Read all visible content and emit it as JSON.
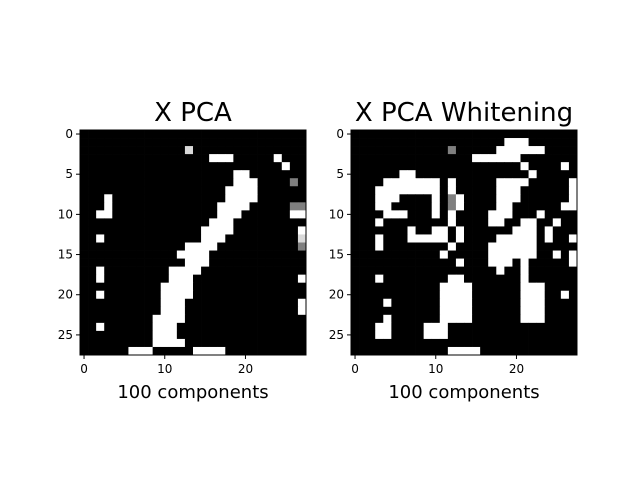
{
  "chart_data": [
    {
      "type": "heatmap",
      "title": "X PCA",
      "xlabel": "100 components",
      "ylabel": "",
      "xlim": [
        -0.5,
        27.5
      ],
      "ylim": [
        27.5,
        -0.5
      ],
      "xticks": [
        "0",
        "10",
        "20"
      ],
      "yticks": [
        "0",
        "5",
        "10",
        "15",
        "20",
        "25"
      ],
      "colormap": "gray",
      "rows": [
        "0000000000000000000000000000",
        "0000000000000000000000000000",
        "0000000000000300000000000000",
        "0000000000000000111000001000",
        "0000000000000000000000000100",
        "0000000000000000000110000000",
        "0000000000000000000111000020",
        "0000000000000000001111000000",
        "0001000000000000001111000000",
        "0001000000000000011110000022",
        "0011000000000000011100000011",
        "0000000000000000111000000000",
        "0000000000000001111000000001",
        "0010000000000001110000000003",
        "0000000000000111100000000002",
        "0000000000001111000000000000",
        "0000000000000111000000000000",
        "0010000000011110000000000000",
        "0010000000011100000000000001",
        "0000000000111100000000000000",
        "0010000000111100000000000000",
        "0000000000111000000000000001",
        "0000000000111000000000000001",
        "0000000001111000000000000000",
        "0010000001110000000000000000",
        "0000000001110000000000000000",
        "0000000001111000000000000000",
        "0000001110000011110000000000"
      ]
    },
    {
      "type": "heatmap",
      "title": "X PCA Whitening",
      "xlabel": "100 components",
      "ylabel": "",
      "xlim": [
        -0.5,
        27.5
      ],
      "ylim": [
        27.5,
        -0.5
      ],
      "xticks": [
        "0",
        "10",
        "20"
      ],
      "yticks": [
        "0",
        "5",
        "10",
        "15",
        "20",
        "25"
      ],
      "colormap": "gray",
      "rows": [
        "0000000000000000000000000000",
        "0000000000000000000111000000",
        "0000000000002000001111110000",
        "0000000000000001111110000000",
        "0000000000000000000001000010",
        "0000001100000000000000100000",
        "0000111111101000001111000001",
        "0001111111101000001110000001",
        "0001110000102100001110000001",
        "0001100000102100001100000011",
        "0000111000101000011100010000",
        "0001000000001000011001100100",
        "0000000100110100000011101000",
        "0001000111110100001111101001",
        "0001000000001000011111100000",
        "0000000000010000011111100101",
        "0000000000000100011101000001",
        "0000000000000000001001000000",
        "0001000000001100000001000000",
        "0000000000011110000001110000",
        "0000000000011110000001110010",
        "0000100000011110000001110000",
        "0000000000011110000001110000",
        "0000100000011110000001110000",
        "0001100001110000000000000000",
        "0001100001110000000000000000",
        "0000000000000000000000000000",
        "0000000000001111000000000000"
      ]
    }
  ]
}
